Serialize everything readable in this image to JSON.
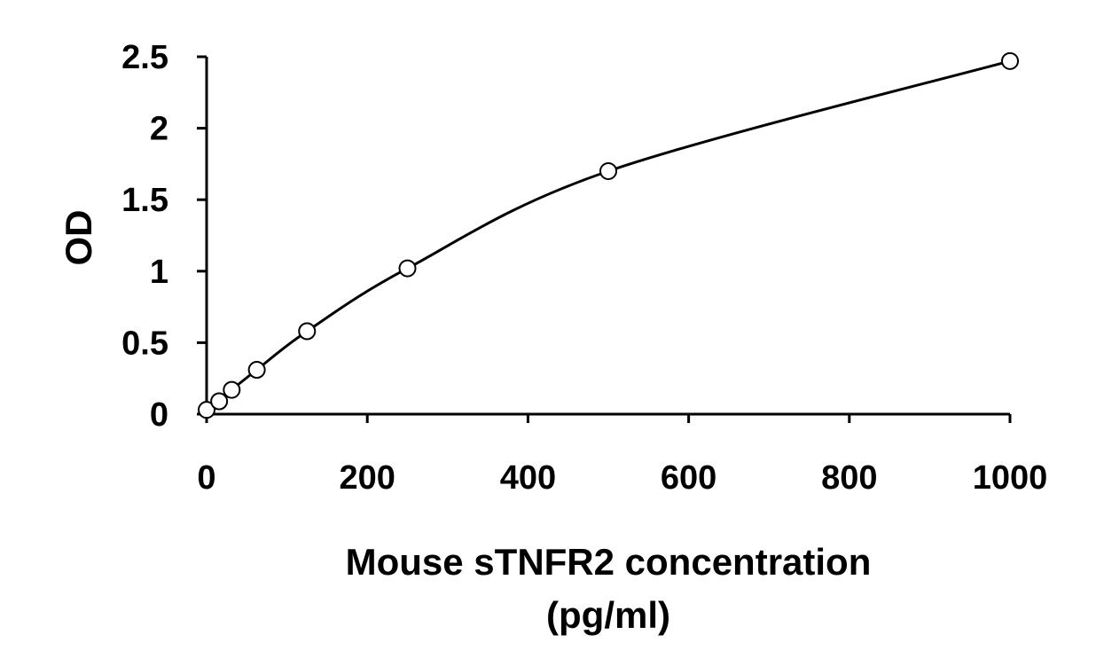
{
  "chart_data": {
    "type": "scatter",
    "title": "",
    "xlabel_lines": [
      "Mouse sTNFR2 concentration",
      "(pg/ml)"
    ],
    "ylabel": "OD",
    "xlim": [
      0,
      1000
    ],
    "ylim": [
      0,
      2.5
    ],
    "x_ticks": [
      0,
      200,
      400,
      600,
      800,
      1000
    ],
    "x_tick_labels": [
      "0",
      "200",
      "400",
      "600",
      "800",
      "1000"
    ],
    "y_ticks": [
      0,
      0.5,
      1,
      1.5,
      2,
      2.5
    ],
    "y_tick_labels": [
      "0",
      "0.5",
      "1",
      "1.5",
      "2",
      "2.5"
    ],
    "grid": false,
    "legend": false,
    "marker": "open-circle",
    "fit_line": true,
    "series": [
      {
        "x": [
          0,
          15.6,
          31.25,
          62.5,
          125,
          250,
          500,
          1000
        ],
        "y": [
          0.03,
          0.09,
          0.17,
          0.31,
          0.58,
          1.02,
          1.7,
          2.47
        ]
      }
    ],
    "colors": {
      "line": "#000000",
      "marker_fill": "#ffffff"
    }
  }
}
